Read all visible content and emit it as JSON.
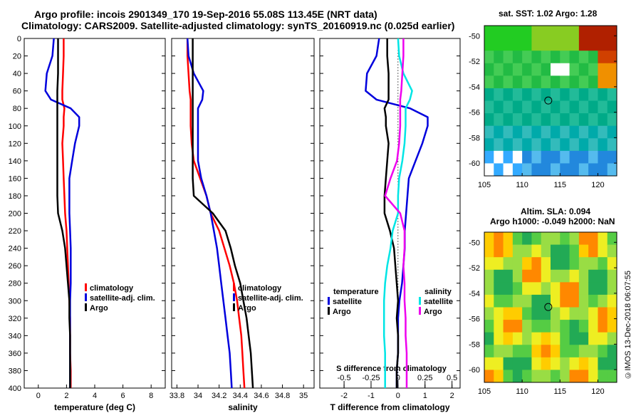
{
  "header": {
    "line1": "Argo profile: incois 2901349_170 19-Sep-2016 55.08S 113.45E (NRT data)",
    "line2": "Climatology: CARS2009. Satellite-adjusted climatology: synTS_20160919.nc (0.025d earlier)"
  },
  "maps": {
    "sst_title": "sat. SST: 1.02 Argo: 1.28",
    "sla_title1": "Altim. SLA: 0.094",
    "sla_title2": "Argo h1000: -0.049 h2000: NaN",
    "lat_ticks": [
      "-50",
      "-52",
      "-54",
      "-56",
      "-58",
      "-60"
    ],
    "lon_ticks": [
      "105",
      "110",
      "115",
      "120"
    ]
  },
  "credit": "©IMOS 13-Dec-2018 06:07:55",
  "colors": {
    "climatology": "#ff0000",
    "satellite": "#0000dd",
    "argo": "#000000",
    "sal_sat": "#00e5e5",
    "sal_argo": "#ee00ee"
  },
  "chart_data": [
    {
      "type": "line",
      "title": "",
      "xlabel": "temperature (deg C)",
      "ylabel": "",
      "xlim": [
        -1,
        9
      ],
      "ylim": [
        400,
        0
      ],
      "x_ticks": [
        "0",
        "2",
        "4",
        "6",
        "8"
      ],
      "y_ticks": [
        "0",
        "20",
        "40",
        "60",
        "80",
        "100",
        "120",
        "140",
        "160",
        "180",
        "200",
        "220",
        "240",
        "260",
        "280",
        "300",
        "320",
        "340",
        "360",
        "380",
        "400"
      ],
      "depth": [
        0,
        20,
        40,
        60,
        70,
        80,
        90,
        100,
        120,
        140,
        160,
        180,
        200,
        220,
        240,
        260,
        280,
        300,
        320,
        340,
        360,
        380,
        400
      ],
      "series": [
        {
          "name": "climatology",
          "values": [
            1.8,
            1.8,
            1.75,
            1.7,
            1.7,
            1.85,
            1.8,
            1.8,
            1.7,
            1.75,
            1.8,
            1.85,
            1.9,
            2.0,
            2.05,
            2.1,
            2.15,
            2.2,
            2.25,
            2.25,
            2.25,
            2.3,
            2.3
          ]
        },
        {
          "name": "satellite-adj. clim.",
          "values": [
            1.1,
            1.0,
            0.6,
            0.5,
            0.9,
            2.3,
            2.9,
            2.9,
            2.6,
            2.4,
            2.2,
            2.2,
            2.2,
            2.25,
            2.3,
            2.3,
            2.3,
            2.25,
            2.25,
            2.25,
            2.25,
            2.25,
            2.25
          ]
        },
        {
          "name": "Argo",
          "values": [
            1.4,
            1.4,
            1.4,
            1.35,
            1.35,
            1.35,
            1.35,
            1.35,
            1.35,
            1.35,
            1.35,
            1.35,
            1.4,
            1.7,
            1.9,
            2.0,
            2.1,
            2.2,
            2.2,
            2.25,
            2.25,
            2.25,
            2.25
          ]
        }
      ],
      "legend": [
        "climatology",
        "satellite-adj. clim.",
        "Argo"
      ],
      "legend_position": "bottom-right"
    },
    {
      "type": "line",
      "title": "",
      "xlabel": "salinity",
      "xlim": [
        33.75,
        35.1
      ],
      "ylim": [
        400,
        0
      ],
      "x_ticks": [
        "33.8",
        "34",
        "34.2",
        "34.4",
        "34.6",
        "34.8",
        "35"
      ],
      "depth": [
        0,
        20,
        40,
        60,
        70,
        80,
        90,
        100,
        120,
        140,
        160,
        180,
        200,
        220,
        240,
        260,
        280,
        300,
        320,
        340,
        360,
        380,
        400
      ],
      "series": [
        {
          "name": "climatology",
          "values": [
            33.9,
            33.9,
            33.91,
            33.92,
            33.93,
            33.93,
            33.93,
            33.93,
            33.94,
            33.96,
            34.02,
            34.08,
            34.12,
            34.2,
            34.25,
            34.3,
            34.34,
            34.37,
            34.39,
            34.41,
            34.42,
            34.43,
            34.44
          ]
        },
        {
          "name": "satellite-adj. clim.",
          "values": [
            33.9,
            33.91,
            33.96,
            34.05,
            34.04,
            34.0,
            34.0,
            34.0,
            34.0,
            34.0,
            34.03,
            34.08,
            34.12,
            34.15,
            34.18,
            34.2,
            34.22,
            34.24,
            34.26,
            34.28,
            34.3,
            34.31,
            34.32
          ]
        },
        {
          "name": "Argo",
          "values": [
            33.95,
            33.95,
            33.95,
            33.95,
            33.95,
            33.95,
            33.95,
            33.95,
            33.95,
            33.95,
            33.95,
            33.96,
            34.14,
            34.26,
            34.31,
            34.35,
            34.4,
            34.43,
            34.46,
            34.48,
            34.5,
            34.51,
            34.52
          ]
        }
      ],
      "legend": [
        "climatology",
        "satellite-adj. clim.",
        "Argo"
      ],
      "legend_position": "bottom-right"
    },
    {
      "type": "line",
      "title": "",
      "xlabel": "T difference from climatology",
      "xlabel_top": "S difference from climatology",
      "xlim": [
        -2.9,
        2.3
      ],
      "ylim": [
        400,
        0
      ],
      "x_ticks": [
        "-2",
        "-1",
        "0",
        "1",
        "2"
      ],
      "x_ticks_salinity": [
        "-0.5",
        "-0.25",
        "0",
        "0.25",
        "0.5"
      ],
      "depth": [
        0,
        20,
        40,
        60,
        70,
        80,
        90,
        100,
        120,
        140,
        160,
        180,
        200,
        220,
        240,
        260,
        280,
        300,
        320,
        340,
        360,
        380,
        400
      ],
      "series": [
        {
          "name": "temperature satellite",
          "values": [
            -0.7,
            -0.8,
            -1.15,
            -1.2,
            -0.8,
            0.45,
            1.1,
            1.1,
            0.9,
            0.65,
            0.4,
            0.35,
            0.3,
            0.25,
            0.25,
            0.2,
            0.15,
            0.05,
            0.0,
            0.0,
            0.0,
            -0.05,
            -0.05
          ]
        },
        {
          "name": "temperature Argo",
          "values": [
            -0.4,
            -0.4,
            -0.35,
            -0.35,
            -0.35,
            -0.5,
            -0.45,
            -0.45,
            -0.35,
            -0.4,
            -0.45,
            -0.5,
            -0.5,
            -0.3,
            -0.15,
            -0.1,
            -0.05,
            0.0,
            -0.05,
            0.0,
            0.0,
            -0.05,
            -0.05
          ]
        },
        {
          "name": "salinity satellite",
          "values": [
            0.0,
            0.01,
            0.05,
            0.13,
            0.11,
            0.07,
            0.07,
            0.07,
            0.06,
            0.04,
            0.01,
            0.0,
            0.0,
            -0.05,
            -0.07,
            -0.1,
            -0.12,
            -0.13,
            -0.13,
            -0.13,
            -0.12,
            -0.12,
            -0.12
          ]
        },
        {
          "name": "salinity Argo",
          "values": [
            0.05,
            0.05,
            0.04,
            0.03,
            0.02,
            0.02,
            0.02,
            0.02,
            0.01,
            -0.01,
            -0.07,
            -0.12,
            0.02,
            0.06,
            0.06,
            0.05,
            0.06,
            0.06,
            0.07,
            0.07,
            0.08,
            0.08,
            0.08
          ]
        }
      ],
      "legend_temperature_title": "temperature",
      "legend_salinity_title": "salinity",
      "legend_temperature": [
        "satellite",
        "Argo"
      ],
      "legend_salinity": [
        "satellite",
        "Argo"
      ],
      "legend_position": "bottom"
    }
  ]
}
